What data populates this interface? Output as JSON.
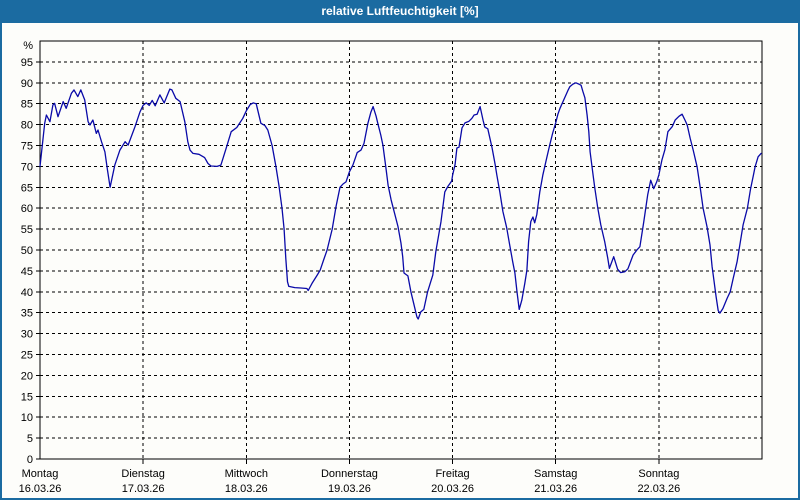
{
  "window": {
    "title": "relative Luftfeuchtigkeit [%]",
    "titlebar_color": "#1b6ba1",
    "border_color": "#1b6ba1",
    "background_color": "#fdfdfa"
  },
  "chart_data": {
    "type": "line",
    "title": "relative Luftfeuchtigkeit [%]",
    "ylabel": "%",
    "xlabel": "",
    "ylim": [
      0,
      100
    ],
    "ytick_step": 5,
    "yticks": [
      0,
      5,
      10,
      15,
      20,
      25,
      30,
      35,
      40,
      45,
      50,
      55,
      60,
      65,
      70,
      75,
      80,
      85,
      90,
      95
    ],
    "grid": "dashed",
    "legend_position": "none",
    "line_color": "#0a0aa8",
    "grid_color": "#000000",
    "x_range_hours": [
      0,
      168
    ],
    "days": [
      {
        "name": "Montag",
        "date": "16.03.26"
      },
      {
        "name": "Dienstag",
        "date": "17.03.26"
      },
      {
        "name": "Mittwoch",
        "date": "18.03.26"
      },
      {
        "name": "Donnerstag",
        "date": "19.03.26"
      },
      {
        "name": "Freitag",
        "date": "20.03.26"
      },
      {
        "name": "Samstag",
        "date": "21.03.26"
      },
      {
        "name": "Sonntag",
        "date": "22.03.26"
      }
    ],
    "series": [
      {
        "name": "relative Luftfeuchtigkeit",
        "points_hours_percent": [
          [
            0,
            70
          ],
          [
            1.1,
            80.3
          ],
          [
            1.5,
            82.3
          ],
          [
            2.3,
            80.7
          ],
          [
            3.0,
            84.7
          ],
          [
            3.4,
            85.1
          ],
          [
            4.2,
            81.9
          ],
          [
            5.4,
            85.5
          ],
          [
            6.1,
            83.9
          ],
          [
            7.3,
            87.5
          ],
          [
            7.9,
            88.3
          ],
          [
            8.8,
            86.7
          ],
          [
            9.5,
            88.3
          ],
          [
            10.4,
            85.9
          ],
          [
            11.2,
            80.7
          ],
          [
            11.6,
            79.9
          ],
          [
            12.3,
            81.1
          ],
          [
            13.1,
            77.9
          ],
          [
            13.5,
            78.7
          ],
          [
            14.3,
            75.9
          ],
          [
            15.1,
            73.5
          ],
          [
            15.7,
            69.1
          ],
          [
            16.3,
            65.0
          ],
          [
            17.4,
            70.3
          ],
          [
            18.6,
            73.9
          ],
          [
            19.8,
            75.9
          ],
          [
            20.5,
            75.1
          ],
          [
            22.1,
            79.5
          ],
          [
            23.3,
            83.1
          ],
          [
            24.0,
            84.6
          ],
          [
            24.7,
            85.2
          ],
          [
            25.4,
            84.6
          ],
          [
            26.1,
            85.8
          ],
          [
            26.8,
            84.5
          ],
          [
            27.9,
            87.1
          ],
          [
            28.9,
            85.2
          ],
          [
            30.2,
            88.5
          ],
          [
            30.7,
            88.3
          ],
          [
            31.6,
            86.3
          ],
          [
            32.6,
            85.5
          ],
          [
            33.7,
            80.7
          ],
          [
            34.4,
            75.9
          ],
          [
            34.9,
            73.9
          ],
          [
            35.6,
            73.1
          ],
          [
            37.0,
            72.9
          ],
          [
            38.3,
            72.1
          ],
          [
            39.1,
            70.7
          ],
          [
            39.8,
            70.1
          ],
          [
            41.2,
            70.0
          ],
          [
            42.1,
            70.3
          ],
          [
            43.3,
            74.3
          ],
          [
            44.5,
            78.3
          ],
          [
            45.8,
            79.3
          ],
          [
            47.2,
            81.5
          ],
          [
            48.0,
            83.3
          ],
          [
            48.9,
            84.8
          ],
          [
            49.6,
            85.2
          ],
          [
            50.3,
            85.0
          ],
          [
            51.4,
            80.3
          ],
          [
            52.3,
            79.8
          ],
          [
            53.0,
            78.7
          ],
          [
            54.0,
            75.0
          ],
          [
            54.9,
            70.0
          ],
          [
            55.6,
            65.5
          ],
          [
            56.3,
            60.0
          ],
          [
            56.8,
            55.0
          ],
          [
            57.2,
            48.0
          ],
          [
            57.6,
            42.4
          ],
          [
            57.9,
            41.3
          ],
          [
            59.3,
            41.0
          ],
          [
            60.7,
            40.9
          ],
          [
            62.1,
            40.8
          ],
          [
            62.4,
            40.3
          ],
          [
            63.3,
            42.0
          ],
          [
            64.5,
            44.0
          ],
          [
            65.2,
            45.2
          ],
          [
            66.0,
            47.6
          ],
          [
            66.8,
            50.0
          ],
          [
            68.0,
            55.0
          ],
          [
            68.9,
            60.5
          ],
          [
            69.8,
            65.0
          ],
          [
            70.5,
            65.8
          ],
          [
            71.2,
            66.3
          ],
          [
            72.0,
            68.7
          ],
          [
            72.8,
            70.3
          ],
          [
            73.8,
            73.3
          ],
          [
            74.7,
            73.9
          ],
          [
            75.4,
            75.5
          ],
          [
            76.3,
            80.3
          ],
          [
            77.0,
            83.0
          ],
          [
            77.5,
            84.3
          ],
          [
            78.2,
            82.0
          ],
          [
            78.6,
            80.3
          ],
          [
            79.3,
            77.5
          ],
          [
            79.8,
            75.1
          ],
          [
            80.5,
            69.5
          ],
          [
            81.0,
            65.5
          ],
          [
            81.7,
            62.0
          ],
          [
            82.6,
            58.4
          ],
          [
            83.3,
            55.6
          ],
          [
            84.0,
            51.6
          ],
          [
            84.4,
            48.4
          ],
          [
            84.7,
            44.5
          ],
          [
            85.6,
            43.8
          ],
          [
            86.3,
            40.0
          ],
          [
            87.0,
            37.0
          ],
          [
            87.7,
            34.0
          ],
          [
            88.0,
            33.5
          ],
          [
            88.6,
            35.2
          ],
          [
            89.3,
            35.8
          ],
          [
            90.2,
            40.0
          ],
          [
            91.4,
            44.0
          ],
          [
            92.1,
            49.6
          ],
          [
            93.3,
            56.8
          ],
          [
            94.2,
            63.9
          ],
          [
            94.9,
            65.2
          ],
          [
            95.8,
            66.5
          ],
          [
            96.0,
            67.9
          ],
          [
            96.6,
            70.5
          ],
          [
            97.0,
            74.4
          ],
          [
            97.5,
            74.6
          ],
          [
            98.2,
            79.2
          ],
          [
            98.9,
            80.4
          ],
          [
            99.8,
            80.8
          ],
          [
            100.5,
            81.5
          ],
          [
            101.0,
            82.3
          ],
          [
            101.7,
            82.5
          ],
          [
            102.4,
            84.3
          ],
          [
            103.1,
            81.0
          ],
          [
            103.5,
            79.4
          ],
          [
            104.2,
            79.0
          ],
          [
            105.2,
            74.4
          ],
          [
            105.9,
            70.5
          ],
          [
            106.3,
            68.0
          ],
          [
            107.0,
            63.9
          ],
          [
            107.7,
            59.2
          ],
          [
            108.6,
            55.3
          ],
          [
            109.3,
            51.2
          ],
          [
            110.0,
            47.2
          ],
          [
            110.5,
            44.5
          ],
          [
            111.0,
            40.0
          ],
          [
            111.5,
            35.8
          ],
          [
            112.1,
            38.0
          ],
          [
            112.8,
            42.0
          ],
          [
            113.3,
            45.2
          ],
          [
            113.7,
            52.0
          ],
          [
            114.2,
            56.8
          ],
          [
            114.7,
            57.9
          ],
          [
            115.1,
            56.5
          ],
          [
            115.6,
            58.5
          ],
          [
            116.3,
            63.9
          ],
          [
            117.0,
            67.9
          ],
          [
            117.9,
            72.0
          ],
          [
            118.6,
            75.1
          ],
          [
            119.3,
            78.0
          ],
          [
            120.0,
            80.4
          ],
          [
            120.5,
            82.5
          ],
          [
            121.0,
            83.9
          ],
          [
            122.2,
            86.7
          ],
          [
            122.9,
            88.3
          ],
          [
            123.3,
            89.1
          ],
          [
            124.0,
            89.7
          ],
          [
            124.7,
            90.0
          ],
          [
            125.4,
            89.7
          ],
          [
            125.9,
            89.4
          ],
          [
            126.3,
            88.0
          ],
          [
            126.8,
            86.4
          ],
          [
            127.3,
            82.3
          ],
          [
            127.7,
            78.3
          ],
          [
            128.0,
            73.5
          ],
          [
            128.7,
            67.9
          ],
          [
            129.1,
            64.8
          ],
          [
            129.8,
            60.0
          ],
          [
            130.5,
            56.0
          ],
          [
            131.4,
            52.0
          ],
          [
            132.1,
            48.1
          ],
          [
            132.5,
            45.6
          ],
          [
            133.5,
            48.4
          ],
          [
            134.4,
            45.4
          ],
          [
            135.1,
            44.6
          ],
          [
            136.1,
            44.8
          ],
          [
            136.8,
            45.5
          ],
          [
            138.0,
            48.8
          ],
          [
            138.9,
            50.0
          ],
          [
            139.6,
            50.8
          ],
          [
            140.5,
            56.8
          ],
          [
            141.4,
            63.2
          ],
          [
            142.1,
            66.7
          ],
          [
            142.8,
            64.7
          ],
          [
            143.5,
            66.3
          ],
          [
            144.0,
            68.0
          ],
          [
            144.7,
            71.5
          ],
          [
            145.4,
            74.0
          ],
          [
            146.1,
            78.3
          ],
          [
            147.1,
            79.5
          ],
          [
            147.8,
            81.1
          ],
          [
            148.7,
            82.0
          ],
          [
            149.4,
            82.5
          ],
          [
            150.1,
            81.0
          ],
          [
            150.6,
            79.9
          ],
          [
            151.3,
            76.7
          ],
          [
            152.0,
            73.9
          ],
          [
            152.9,
            69.9
          ],
          [
            153.6,
            65.1
          ],
          [
            154.3,
            60.0
          ],
          [
            155.2,
            55.6
          ],
          [
            155.9,
            51.2
          ],
          [
            156.4,
            46.0
          ],
          [
            156.8,
            42.8
          ],
          [
            157.3,
            39.0
          ],
          [
            157.8,
            35.5
          ],
          [
            158.2,
            34.9
          ],
          [
            158.9,
            36.0
          ],
          [
            159.9,
            38.5
          ],
          [
            160.6,
            40.0
          ],
          [
            161.3,
            43.2
          ],
          [
            162.2,
            47.2
          ],
          [
            162.9,
            51.6
          ],
          [
            163.6,
            56.0
          ],
          [
            164.6,
            60.0
          ],
          [
            165.3,
            64.4
          ],
          [
            166.0,
            67.9
          ],
          [
            166.4,
            69.9
          ],
          [
            167.1,
            72.3
          ],
          [
            167.8,
            73.1
          ]
        ]
      }
    ]
  }
}
